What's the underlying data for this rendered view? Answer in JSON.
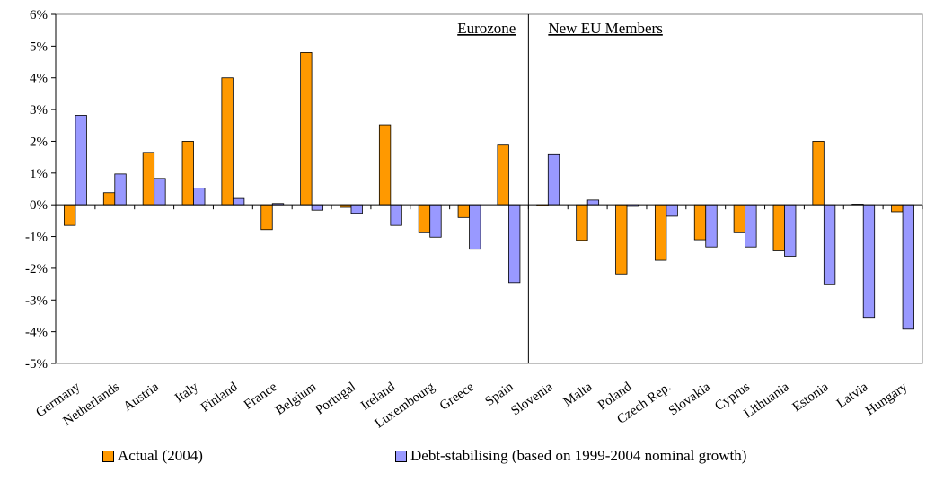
{
  "chart_data": {
    "type": "bar",
    "categories": [
      "Germany",
      "Netherlands",
      "Austria",
      "Italy",
      "Finland",
      "France",
      "Belgium",
      "Portugal",
      "Ireland",
      "Luxembourg",
      "Greece",
      "Spain",
      "Slovenia",
      "Malta",
      "Poland",
      "Czech Rep.",
      "Slovakia",
      "Cyprus",
      "Lithuania",
      "Estonia",
      "Latvia",
      "Hungary"
    ],
    "series": [
      {
        "name": "Actual (2004)",
        "color": "#ff9900",
        "values": [
          -0.65,
          0.38,
          1.65,
          2.0,
          4.0,
          -0.78,
          4.8,
          -0.08,
          2.52,
          -0.88,
          -0.4,
          1.88,
          -0.03,
          -1.12,
          -2.18,
          -1.75,
          -1.1,
          -0.88,
          -1.45,
          2.0,
          0.02,
          -0.22
        ]
      },
      {
        "name": "Debt-stabilising (based on 1999-2004 nominal growth)",
        "color": "#9999ff",
        "values": [
          2.82,
          0.97,
          0.83,
          0.53,
          0.2,
          0.04,
          -0.17,
          -0.27,
          -0.65,
          -1.02,
          -1.4,
          -2.45,
          1.58,
          0.15,
          -0.05,
          -0.36,
          -1.33,
          -1.33,
          -1.62,
          -2.52,
          -3.55,
          -3.92
        ]
      }
    ],
    "ylim": [
      -5,
      6
    ],
    "yticks": [
      "-5%",
      "-4%",
      "-3%",
      "-2%",
      "-1%",
      "0%",
      "1%",
      "2%",
      "3%",
      "4%",
      "5%",
      "6%"
    ],
    "annotations": [
      "Eurozone",
      "New EU Members"
    ],
    "divider_after_category": "Spain",
    "grid": false,
    "legend_position": "bottom"
  }
}
